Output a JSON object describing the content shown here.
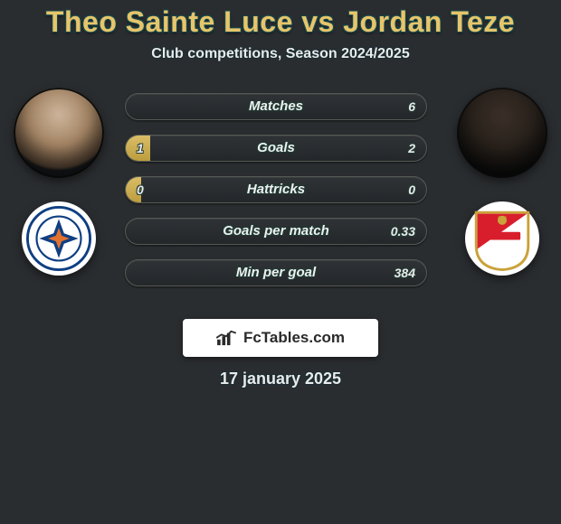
{
  "title": {
    "player1": "Theo Sainte Luce",
    "vs": "vs",
    "player2": "Jordan Teze",
    "color_players": "#e7c56a",
    "outline_color": "#16484d"
  },
  "subtitle": "Club competitions, Season 2024/2025",
  "date": "17 january 2025",
  "brand": {
    "text": "FcTables.com"
  },
  "colors": {
    "page_bg": "#2a2d30",
    "bar_bg": "#2b2f32",
    "bar_border": "#555b54",
    "bar_fill": "#d9b958",
    "text_outline": "#1f3a33",
    "text_color": "#eef0ef"
  },
  "left": {
    "player_name": "Theo Sainte Luce",
    "avatar_tone": "light",
    "club": "Montpellier"
  },
  "right": {
    "player_name": "Jordan Teze",
    "avatar_tone": "dark",
    "club": "AS Monaco"
  },
  "bars": [
    {
      "label": "Matches",
      "left": "",
      "right": "6",
      "fill_left_pct": 0,
      "fill_right_pct": 0
    },
    {
      "label": "Goals",
      "left": "1",
      "right": "2",
      "fill_left_pct": 8,
      "fill_right_pct": 0
    },
    {
      "label": "Hattricks",
      "left": "0",
      "right": "0",
      "fill_left_pct": 5,
      "fill_right_pct": 0
    },
    {
      "label": "Goals per match",
      "left": "",
      "right": "0.33",
      "fill_left_pct": 0,
      "fill_right_pct": 0
    },
    {
      "label": "Min per goal",
      "left": "",
      "right": "384",
      "fill_left_pct": 0,
      "fill_right_pct": 0
    }
  ]
}
